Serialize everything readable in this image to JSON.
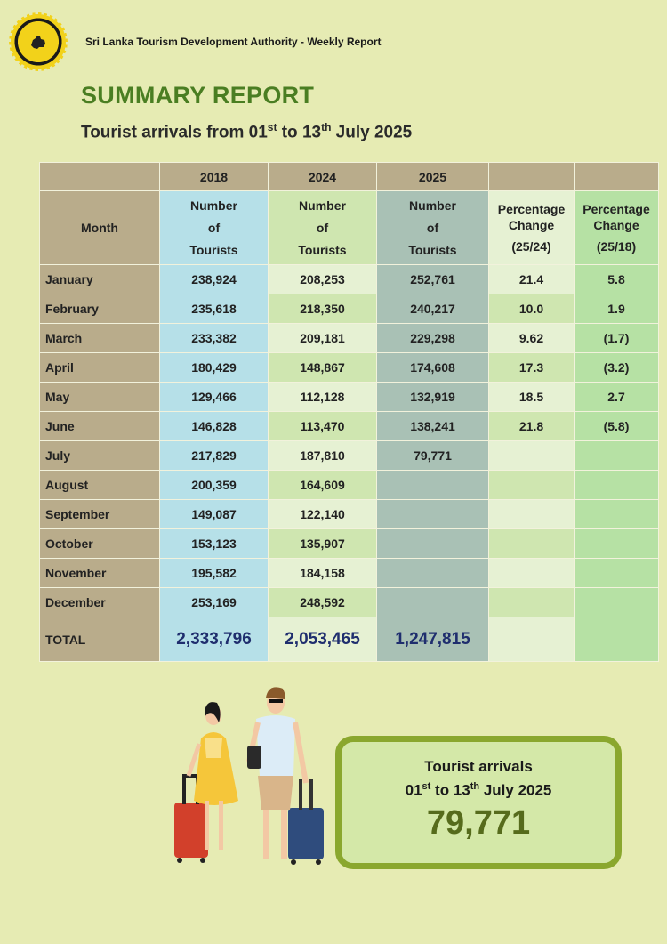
{
  "header": {
    "org": "Sri Lanka Tourism Development Authority - Weekly Report",
    "title": "SUMMARY REPORT",
    "subtitle": {
      "pre": "Tourist arrivals from 01",
      "sup1": "st",
      "mid": " to 13",
      "sup2": "th",
      "post": " July 2025"
    }
  },
  "table": {
    "years": [
      "2018",
      "2024",
      "2025"
    ],
    "month_label": "Month",
    "number_label": [
      "Number",
      "of",
      "Tourists"
    ],
    "pct1_label": [
      "Percentage",
      "Change",
      "(25/24)"
    ],
    "pct2_label": [
      "Percentage",
      "Change",
      "(25/18)"
    ],
    "rows": [
      {
        "month": "January",
        "y2018": "238,924",
        "y2024": "208,253",
        "y2025": "252,761",
        "pct2524": "21.4",
        "pct2518": "5.8"
      },
      {
        "month": "February",
        "y2018": "235,618",
        "y2024": "218,350",
        "y2025": "240,217",
        "pct2524": "10.0",
        "pct2518": "1.9"
      },
      {
        "month": "March",
        "y2018": "233,382",
        "y2024": "209,181",
        "y2025": "229,298",
        "pct2524": "9.62",
        "pct2518": "(1.7)"
      },
      {
        "month": "April",
        "y2018": "180,429",
        "y2024": "148,867",
        "y2025": "174,608",
        "pct2524": "17.3",
        "pct2518": "(3.2)"
      },
      {
        "month": "May",
        "y2018": "129,466",
        "y2024": "112,128",
        "y2025": "132,919",
        "pct2524": "18.5",
        "pct2518": "2.7"
      },
      {
        "month": "June",
        "y2018": "146,828",
        "y2024": "113,470",
        "y2025": "138,241",
        "pct2524": "21.8",
        "pct2518": "(5.8)"
      },
      {
        "month": "July",
        "y2018": "217,829",
        "y2024": "187,810",
        "y2025": "79,771",
        "pct2524": "",
        "pct2518": ""
      },
      {
        "month": "August",
        "y2018": "200,359",
        "y2024": "164,609",
        "y2025": "",
        "pct2524": "",
        "pct2518": ""
      },
      {
        "month": "September",
        "y2018": "149,087",
        "y2024": "122,140",
        "y2025": "",
        "pct2524": "",
        "pct2518": ""
      },
      {
        "month": "October",
        "y2018": "153,123",
        "y2024": "135,907",
        "y2025": "",
        "pct2524": "",
        "pct2518": ""
      },
      {
        "month": "November",
        "y2018": "195,582",
        "y2024": "184,158",
        "y2025": "",
        "pct2524": "",
        "pct2518": ""
      },
      {
        "month": "December",
        "y2018": "253,169",
        "y2024": "248,592",
        "y2025": "",
        "pct2524": "",
        "pct2518": ""
      }
    ],
    "total": {
      "label": "TOTAL",
      "y2018": "2,333,796",
      "y2024": "2,053,465",
      "y2025": "1,247,815"
    }
  },
  "highlight": {
    "line1": "Tourist arrivals",
    "line2": {
      "pre": "01",
      "sup1": "st",
      "mid": " to 13",
      "sup2": "th",
      "post": " July 2025"
    },
    "value": "79,771"
  },
  "colors": {
    "background": "#e6ebb3",
    "title_green": "#4a7e22",
    "total_blue": "#1f2e6e",
    "box_border": "#8aa72e",
    "box_number": "#566b1c"
  },
  "icons": [
    "sri-lanka-emblem-icon",
    "tourists-illustration"
  ]
}
